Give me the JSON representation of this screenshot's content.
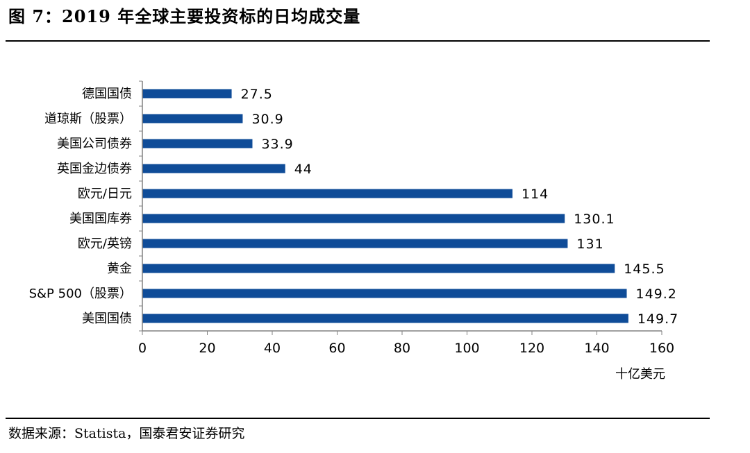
{
  "figure": {
    "title": "图 7：2019 年全球主要投资标的日均成交量",
    "source": "数据来源：Statista，国泰君安证券研究"
  },
  "colors": {
    "bar": "#0f4c98",
    "axis": "#808080",
    "text": "#000000"
  },
  "chart_data": {
    "type": "bar",
    "orientation": "horizontal",
    "categories": [
      "德国国债",
      "道琼斯（股票）",
      "美国公司债券",
      "英国金边债券",
      "欧元/日元",
      "美国国库券",
      "欧元/英镑",
      "黄金",
      "S&P 500（股票）",
      "美国国债"
    ],
    "values": [
      27.5,
      30.9,
      33.9,
      44,
      114,
      130.1,
      131,
      145.5,
      149.2,
      149.7
    ],
    "value_labels": [
      "27.5",
      "30.9",
      "33.9",
      "44",
      "114",
      "130.1",
      "131",
      "145.5",
      "149.2",
      "149.7"
    ],
    "xlim": [
      0,
      160
    ],
    "xticks": [
      0,
      20,
      40,
      60,
      80,
      100,
      120,
      140,
      160
    ],
    "tick_labels": [
      "0",
      "20",
      "40",
      "60",
      "80",
      "100",
      "120",
      "140",
      "160"
    ],
    "xlabel": "十亿美元",
    "grid": false,
    "legend": "none"
  }
}
